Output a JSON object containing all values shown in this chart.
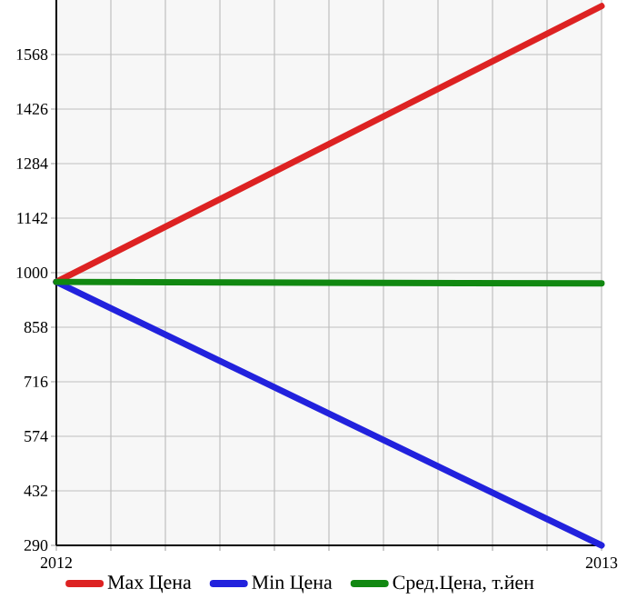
{
  "chart_data": {
    "type": "line",
    "x": [
      2012,
      2013
    ],
    "series": [
      {
        "name": "Max Цена",
        "color": "#dd2222",
        "values": [
          976,
          1694
        ]
      },
      {
        "name": "Min Цена",
        "color": "#2222dd",
        "values": [
          976,
          290
        ]
      },
      {
        "name": "Сред.Цена, т.йен",
        "color": "#118811",
        "values": [
          976,
          972
        ]
      }
    ],
    "xlim": [
      2012,
      2013
    ],
    "xticks": [
      2012,
      {
        "value": 2012.1,
        "label": null
      },
      {
        "value": 2012.2,
        "label": null
      },
      {
        "value": 2012.3,
        "label": null
      },
      {
        "value": 2012.4,
        "label": null
      },
      {
        "value": 2012.5,
        "label": null
      },
      {
        "value": 2012.6,
        "label": null
      },
      {
        "value": 2012.7,
        "label": null
      },
      {
        "value": 2012.8,
        "label": null
      },
      {
        "value": 2012.9,
        "label": null
      },
      2013
    ],
    "ylim": [
      290,
      1710
    ],
    "yticks": [
      290,
      432,
      574,
      716,
      858,
      1000,
      1142,
      1284,
      1426,
      1568
    ],
    "grid": true,
    "legend": "bottom",
    "marker": "none",
    "line_style": "solid"
  }
}
